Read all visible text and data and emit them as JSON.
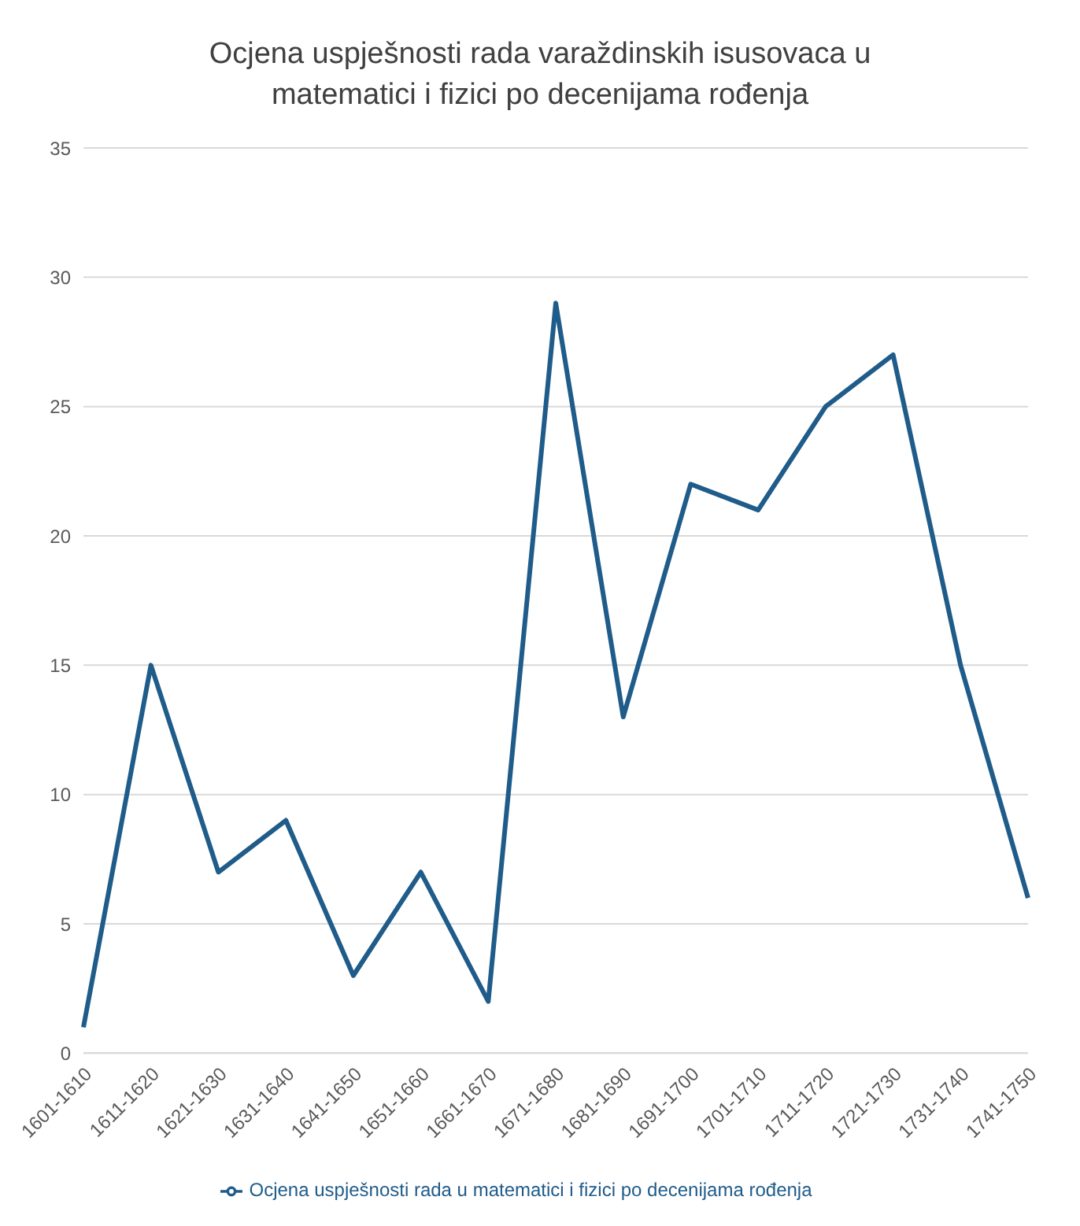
{
  "chart_data": {
    "type": "line",
    "title": "Ocjena uspješnosti rada varaždinskih isusovaca u matematici i fizici po decenijama rođenja",
    "categories": [
      "1601-1610",
      "1611-1620",
      "1621-1630",
      "1631-1640",
      "1641-1650",
      "1651-1660",
      "1661-1670",
      "1671-1680",
      "1681-1690",
      "1691-1700",
      "1701-1710",
      "1711-1720",
      "1721-1730",
      "1731-1740",
      "1741-1750"
    ],
    "series": [
      {
        "name": "Ocjena uspješnosti rada u matematici i fizici po decenijama rođenja",
        "color": "#1f5c8a",
        "values": [
          1,
          15,
          7,
          9,
          3,
          7,
          2,
          29,
          13,
          22,
          21,
          25,
          27,
          15,
          6
        ]
      }
    ],
    "ylim": [
      0,
      35
    ],
    "yticks": [
      0,
      5,
      10,
      15,
      20,
      25,
      30,
      35
    ],
    "grid": "y",
    "legend": "bottom",
    "marker": "none",
    "line_style": "solid"
  }
}
